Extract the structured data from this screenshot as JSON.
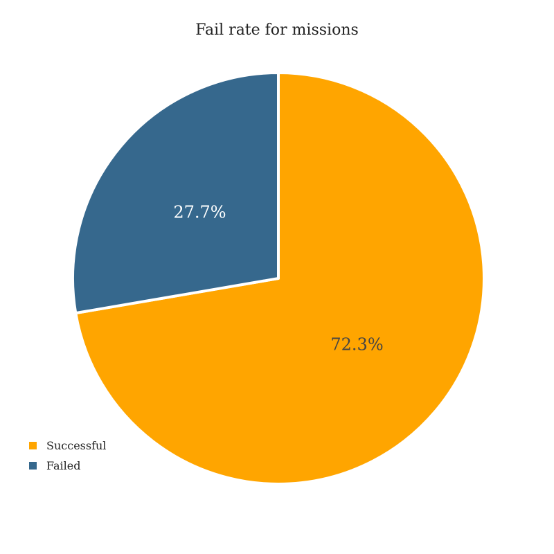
{
  "chart_data": {
    "type": "pie",
    "title": "Fail rate for missions",
    "categories": [
      "Successful",
      "Failed"
    ],
    "values": [
      72.3,
      27.7
    ],
    "value_labels": [
      "72.3%",
      "27.7%"
    ],
    "colors": [
      "#FFA500",
      "#36688D"
    ],
    "label_colors": [
      "#444444",
      "#ffffff"
    ],
    "legend_placement": "bottom-left"
  }
}
